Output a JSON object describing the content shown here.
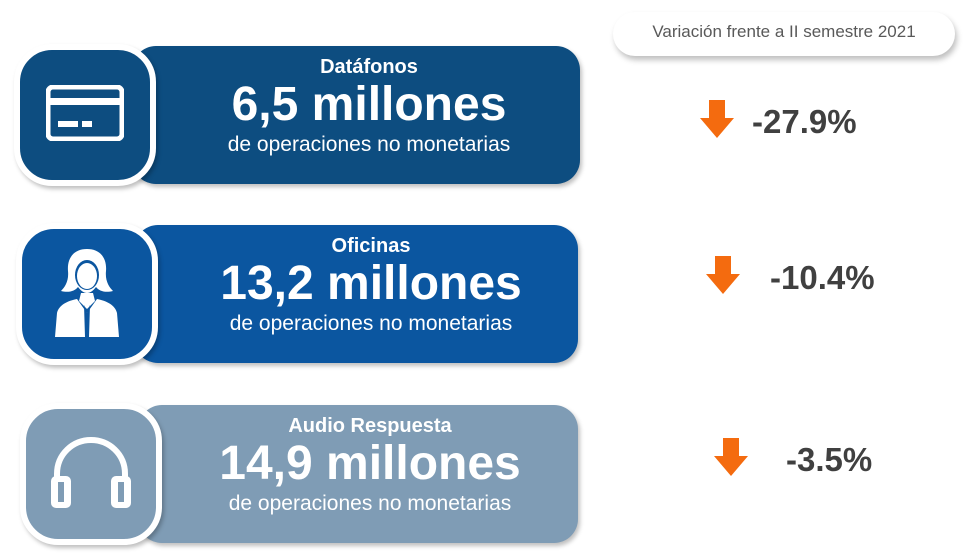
{
  "header": {
    "variation_label": "Variación frente a II semestre 2021"
  },
  "colors": {
    "card1": "#0d4d80",
    "card2": "#0b56a0",
    "card3": "#7f9cb5",
    "arrow": "#f46b0f"
  },
  "cards": [
    {
      "icon": "credit-card-icon",
      "title": "Datáfonos",
      "value": "6,5 millones",
      "subtitle": "de operaciones no monetarias",
      "change": "-27.9%",
      "direction": "down"
    },
    {
      "icon": "person-icon",
      "title": "Oficinas",
      "value": "13,2 millones",
      "subtitle": "de operaciones no monetarias",
      "change": "-10.4%",
      "direction": "down"
    },
    {
      "icon": "headphones-icon",
      "title": "Audio Respuesta",
      "value": "14,9 millones",
      "subtitle": "de operaciones no monetarias",
      "change": "-3.5%",
      "direction": "down"
    }
  ]
}
